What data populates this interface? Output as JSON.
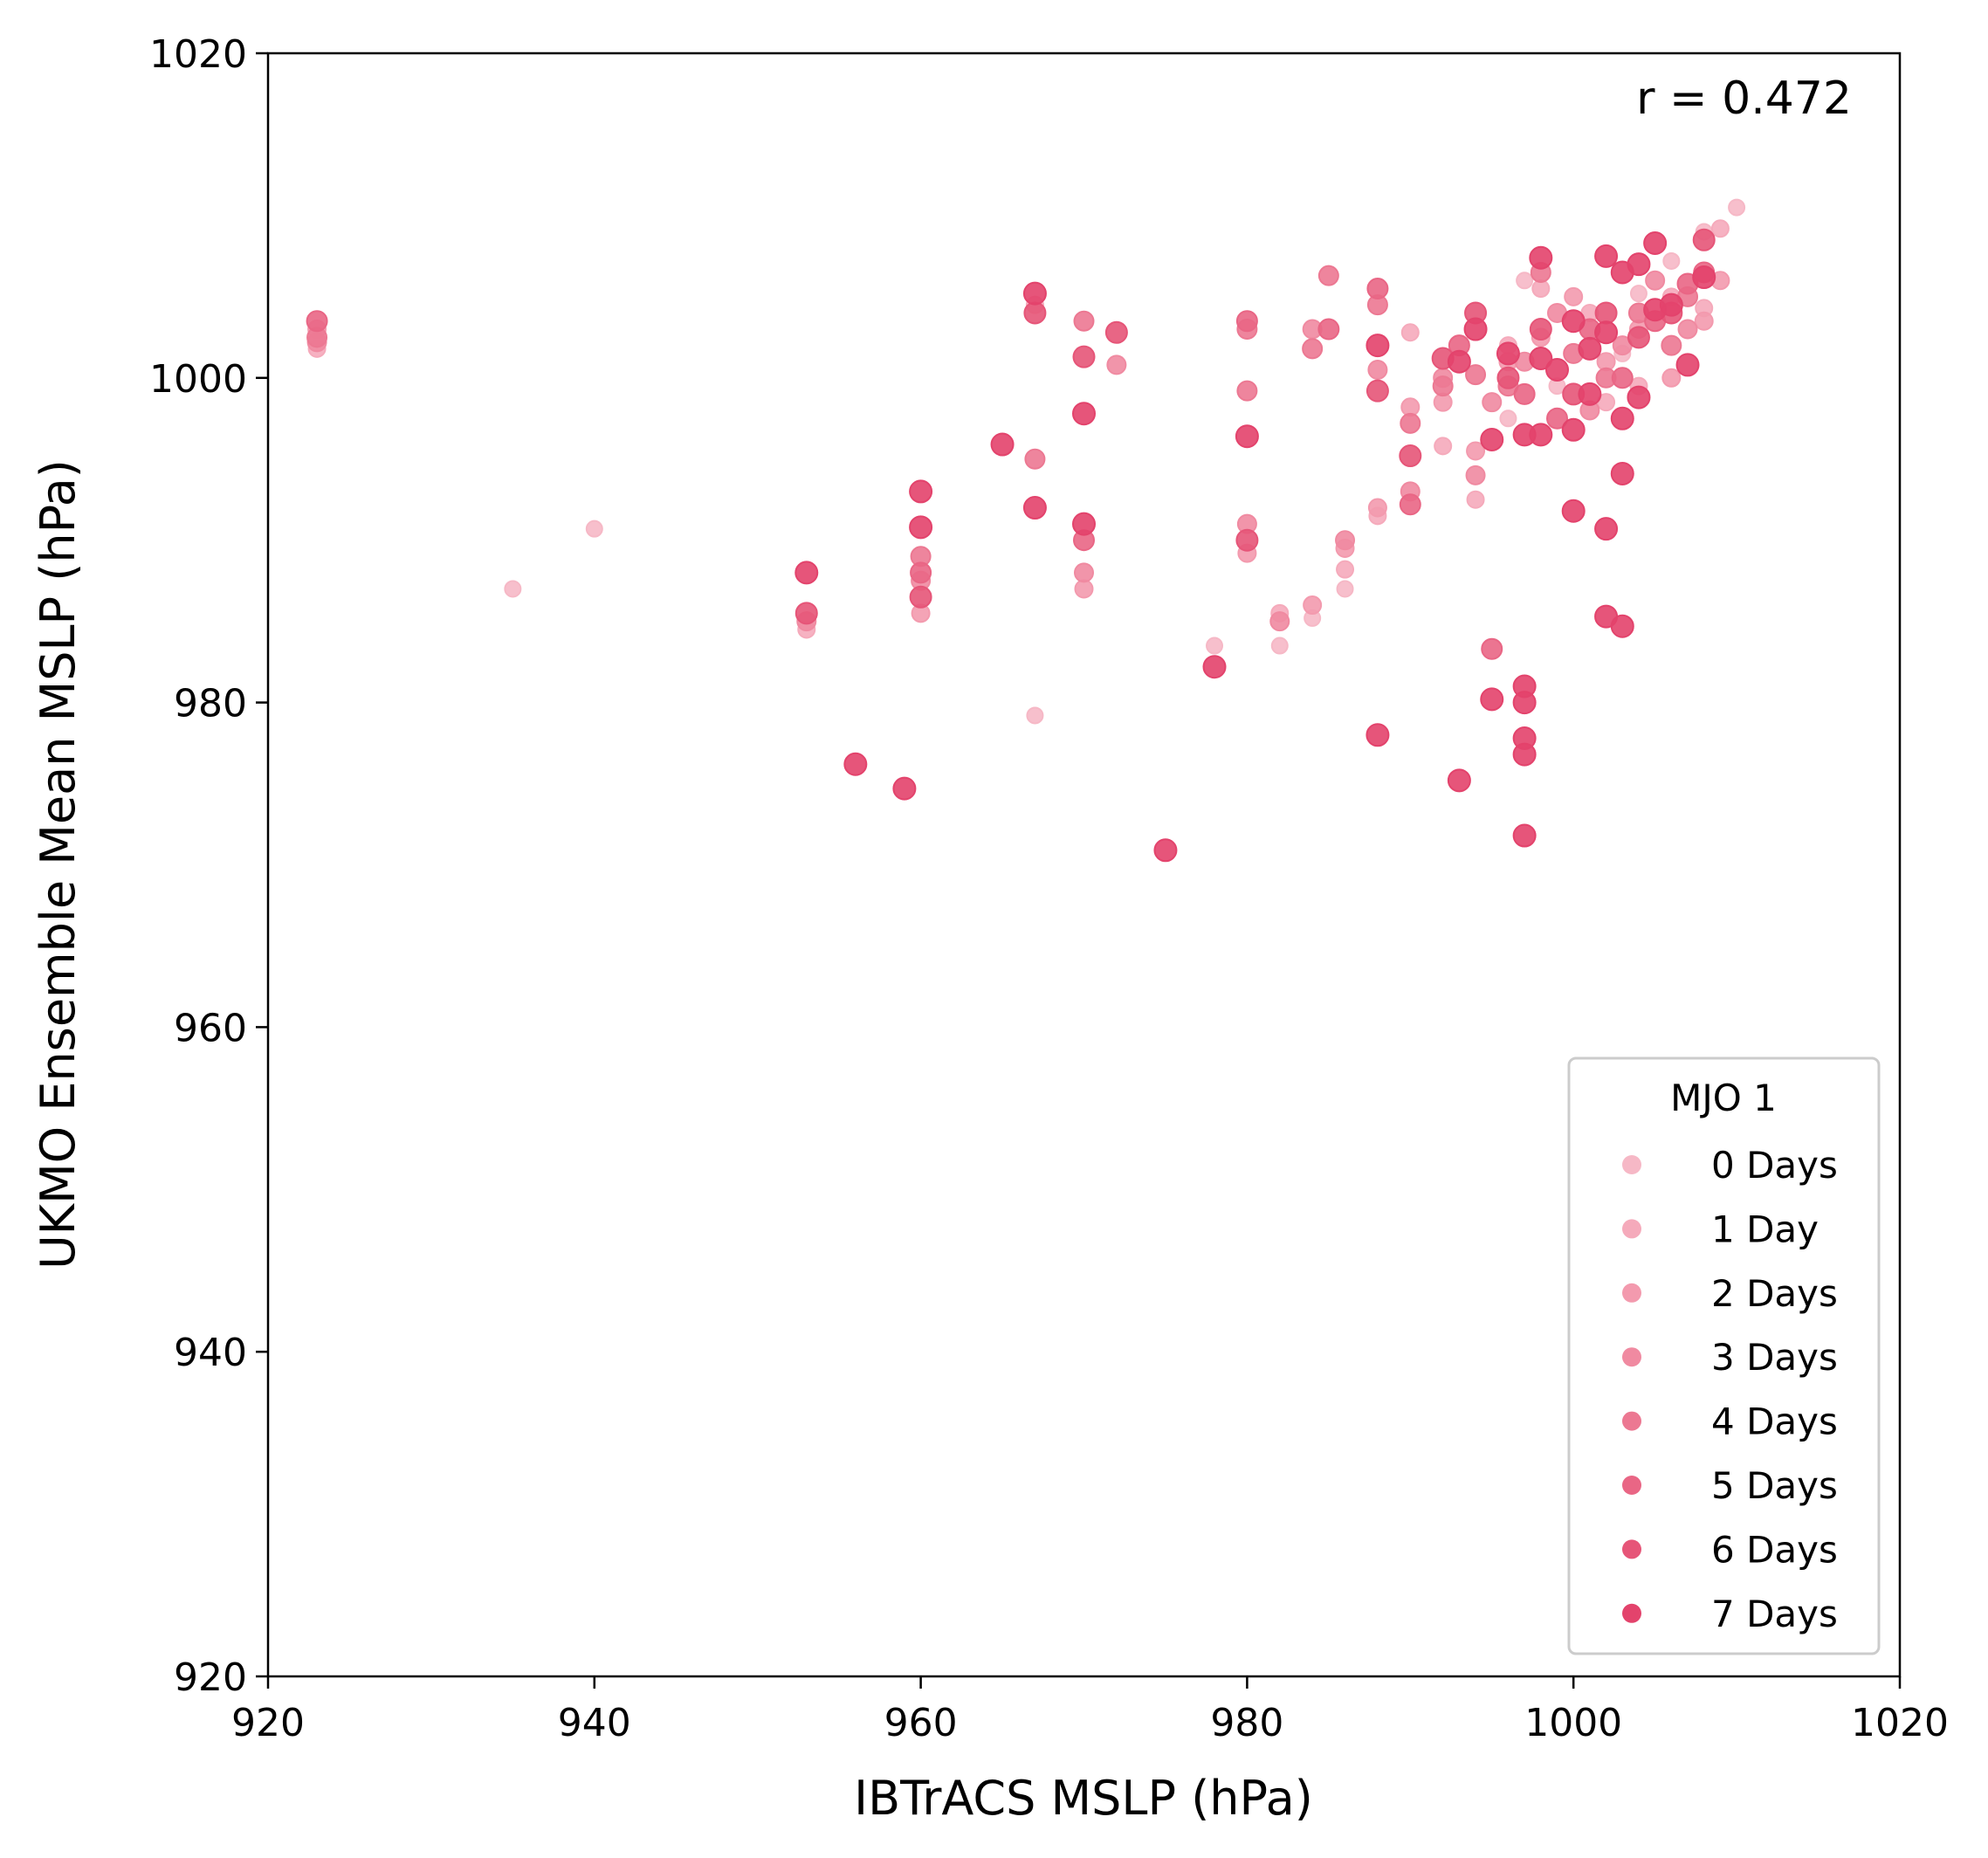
{
  "chart_data": {
    "type": "scatter",
    "xlabel": "IBTrACS MSLP (hPa)",
    "ylabel": "UKMO Ensemble Mean MSLP (hPa)",
    "xlim": [
      920,
      1020
    ],
    "ylim": [
      920,
      1020
    ],
    "xticks": [
      "920",
      "940",
      "960",
      "980",
      "1000",
      "1020"
    ],
    "yticks": [
      "920",
      "940",
      "960",
      "980",
      "1000",
      "1020"
    ],
    "annotation": "r = 0.472",
    "legend": {
      "title": "MJO 1",
      "placement": "lower-right",
      "entries": [
        "0 Days",
        "1 Day",
        "2 Days",
        "3 Days",
        "4 Days",
        "5 Days",
        "6 Days",
        "7 Days"
      ]
    },
    "series": [
      {
        "name": "0 Days",
        "color": "#f6b8c6",
        "points": [
          [
            935,
            987
          ],
          [
            940,
            990.7
          ],
          [
            967,
            979.2
          ],
          [
            978,
            983.5
          ],
          [
            982,
            983.5
          ],
          [
            984,
            985.2
          ],
          [
            986,
            987
          ],
          [
            996,
            997.5
          ],
          [
            997,
            1006
          ],
          [
            999,
            999.5
          ],
          [
            1004,
            1005.2
          ],
          [
            1006,
            1007.2
          ],
          [
            1008,
            1009
          ],
          [
            1010,
            1010.5
          ],
          [
            1003,
            1001.5
          ]
        ]
      },
      {
        "name": "1 Day",
        "color": "#f5aabb",
        "points": [
          [
            923,
            1001.8
          ],
          [
            953,
            984.5
          ],
          [
            967,
            1004.5
          ],
          [
            982,
            985.5
          ],
          [
            986,
            988.2
          ],
          [
            988,
            991.5
          ],
          [
            990,
            1002.8
          ],
          [
            992,
            995.8
          ],
          [
            994,
            992.5
          ],
          [
            996,
            1002
          ],
          [
            998,
            1005.5
          ],
          [
            1001,
            1004
          ],
          [
            1002,
            998.5
          ],
          [
            1004,
            999.5
          ],
          [
            1006,
            1005
          ],
          [
            1008,
            1004.3
          ],
          [
            1009,
            1009.2
          ]
        ]
      },
      {
        "name": "2 Days",
        "color": "#f39aae",
        "points": [
          [
            923,
            1003
          ],
          [
            960,
            985.5
          ],
          [
            970,
            987
          ],
          [
            980,
            989.2
          ],
          [
            984,
            986
          ],
          [
            986,
            989.5
          ],
          [
            988,
            992
          ],
          [
            990,
            998.2
          ],
          [
            992,
            998.5
          ],
          [
            994,
            995.5
          ],
          [
            996,
            1001
          ],
          [
            998,
            1002.5
          ],
          [
            1000,
            1005
          ],
          [
            1002,
            1001
          ],
          [
            1004,
            1003
          ],
          [
            1006,
            1000
          ],
          [
            1008,
            1003.5
          ],
          [
            1009,
            1006
          ]
        ]
      },
      {
        "name": "3 Days",
        "color": "#f08aa1",
        "points": [
          [
            923,
            1002.2
          ],
          [
            953,
            985
          ],
          [
            960,
            987.5
          ],
          [
            970,
            988
          ],
          [
            972,
            1000.8
          ],
          [
            980,
            991
          ],
          [
            982,
            985
          ],
          [
            984,
            1003
          ],
          [
            986,
            990
          ],
          [
            988,
            1000.5
          ],
          [
            990,
            993
          ],
          [
            992,
            1000
          ],
          [
            994,
            994
          ],
          [
            995,
            998.5
          ],
          [
            997,
            1001
          ],
          [
            999,
            1004
          ],
          [
            1001,
            998
          ],
          [
            1003,
            1002
          ],
          [
            1005,
            1006
          ],
          [
            1007,
            1003
          ]
        ]
      },
      {
        "name": "4 Days",
        "color": "#ec7892",
        "points": [
          [
            923,
            1002.5
          ],
          [
            960,
            989
          ],
          [
            967,
            995
          ],
          [
            970,
            1003.5
          ],
          [
            980,
            1003
          ],
          [
            980,
            999.2
          ],
          [
            984,
            1001.8
          ],
          [
            985,
            1006.3
          ],
          [
            988,
            1004.5
          ],
          [
            990,
            997.2
          ],
          [
            992,
            999.5
          ],
          [
            994,
            1000.2
          ],
          [
            996,
            999.5
          ],
          [
            998,
            1006.5
          ],
          [
            1000,
            1001.5
          ],
          [
            1002,
            1000
          ],
          [
            1004,
            1004
          ],
          [
            1006,
            1002
          ],
          [
            1007,
            1005
          ]
        ]
      },
      {
        "name": "5 Days",
        "color": "#e96685",
        "points": [
          [
            923,
            1003.5
          ],
          [
            960,
            988
          ],
          [
            970,
            990
          ],
          [
            980,
            1003.5
          ],
          [
            985,
            1003
          ],
          [
            988,
            1005.5
          ],
          [
            990,
            992.2
          ],
          [
            993,
            1002
          ],
          [
            995,
            983.3
          ],
          [
            997,
            999
          ],
          [
            999,
            997.5
          ],
          [
            1001,
            1003
          ],
          [
            1003,
            1000
          ],
          [
            1005,
            1003.5
          ],
          [
            1007,
            1005.8
          ],
          [
            1008,
            1006.5
          ]
        ]
      },
      {
        "name": "6 Days",
        "color": "#e65578",
        "points": [
          [
            953,
            985.5
          ],
          [
            960,
            986.5
          ],
          [
            967,
            1004
          ],
          [
            970,
            1001.3
          ],
          [
            972,
            1002.8
          ],
          [
            980,
            990
          ],
          [
            988,
            999.2
          ],
          [
            990,
            995.2
          ],
          [
            992,
            1001.2
          ],
          [
            994,
            1004
          ],
          [
            996,
            1000
          ],
          [
            998,
            1003
          ],
          [
            1000,
            999
          ],
          [
            1002,
            1004
          ],
          [
            1004,
            1002.5
          ],
          [
            1006,
            1004
          ],
          [
            1008,
            1008.5
          ]
        ]
      },
      {
        "name": "7 Days",
        "color": "#e3436c",
        "points": [
          [
            953,
            988
          ],
          [
            956,
            976.2
          ],
          [
            959,
            974.7
          ],
          [
            960,
            993
          ],
          [
            960,
            990.8
          ],
          [
            965,
            995.9
          ],
          [
            967,
            992
          ],
          [
            967,
            1005.2
          ],
          [
            970,
            997.8
          ],
          [
            970,
            991
          ],
          [
            975,
            970.9
          ],
          [
            978,
            982.2
          ],
          [
            980,
            996.4
          ],
          [
            988,
            978
          ],
          [
            988,
            1002
          ],
          [
            993,
            975.2
          ],
          [
            995,
            980.2
          ],
          [
            995,
            996.2
          ],
          [
            997,
            971.8
          ],
          [
            997,
            976.8
          ],
          [
            997,
            977.8
          ],
          [
            997,
            980
          ],
          [
            997,
            981
          ],
          [
            997,
            996.5
          ],
          [
            998,
            1007.4
          ],
          [
            1000,
            991.8
          ],
          [
            1002,
            990.7
          ],
          [
            1002,
            985.3
          ],
          [
            1003,
            984.7
          ],
          [
            1003,
            994.1
          ],
          [
            1004,
            998.8
          ],
          [
            1005,
            1008.3
          ],
          [
            1007,
            1000.8
          ],
          [
            1003,
            997.5
          ],
          [
            1001,
            999
          ],
          [
            1000,
            1003.5
          ],
          [
            999,
            1000.5
          ],
          [
            1002,
            1007.5
          ],
          [
            1004,
            1007
          ],
          [
            1006,
            1004.5
          ],
          [
            1003,
            1006.5
          ],
          [
            1000,
            996.8
          ],
          [
            998,
            996.5
          ],
          [
            994,
            1003
          ],
          [
            996,
            1001.5
          ],
          [
            993,
            1001
          ],
          [
            998,
            1001.2
          ],
          [
            1001,
            1001.8
          ],
          [
            1002,
            1002.8
          ],
          [
            1005,
            1004.2
          ],
          [
            1008,
            1006.2
          ]
        ]
      }
    ]
  }
}
